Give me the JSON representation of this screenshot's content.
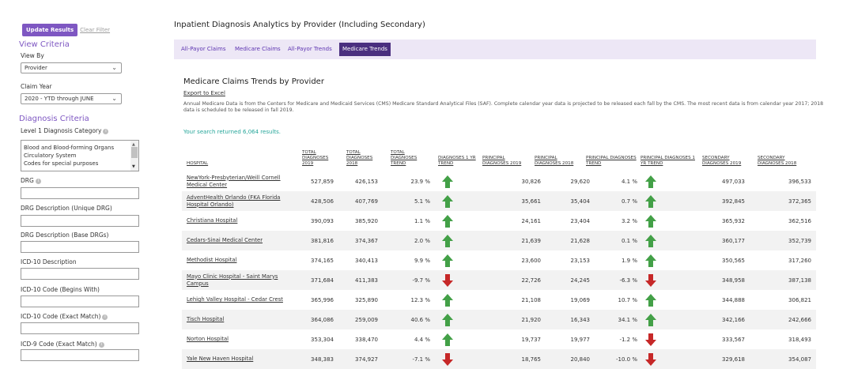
{
  "sidebar": {
    "update_button": "Update Results",
    "clear_filter": "Clear Filter",
    "view_criteria_title": "View Criteria",
    "view_by_label": "View By",
    "view_by_value": "Provider",
    "claim_year_label": "Claim Year",
    "claim_year_value": "2020 - YTD through JUNE",
    "diagnosis_criteria_title": "Diagnosis Criteria",
    "level1_label": "Level 1 Diagnosis Category",
    "level1_options": [
      "Blood and Blood-forming Organs",
      "Circulatory System",
      "Codes for special purposes"
    ],
    "drg_label": "DRG",
    "drg_desc_unique_label": "DRG Description (Unique DRG)",
    "drg_desc_base_label": "DRG Description (Base DRGs)",
    "icd10_desc_label": "ICD-10 Description",
    "icd10_begins_label": "ICD-10 Code (Begins With)",
    "icd10_exact_label": "ICD-10 Code (Exact Match)",
    "icd9_exact_label": "ICD-9 Code (Exact Match)"
  },
  "main": {
    "page_title": "Inpatient Diagnosis Analytics by Provider (Including Secondary)",
    "tabs": [
      {
        "label": "All-Payor Claims",
        "active": false
      },
      {
        "label": "Medicare Claims",
        "active": false
      },
      {
        "label": "All-Payor Trends",
        "active": false
      },
      {
        "label": "Medicare Trends",
        "active": true
      }
    ],
    "section_title": "Medicare Claims Trends by Provider",
    "export_label": "Export to Excel",
    "description": "Annual Medicare Data is from the Centers for Medicare and Medicaid Services (CMS) Medicare Standard Analytical Files (SAF). Complete calendar year data is projected to be released each fall by the CMS. The most recent data is from calendar year 2017; 2018 data is scheduled to be released in fall 2019.",
    "results_text": "Your search returned 6,064 results."
  },
  "table": {
    "headers": [
      "HOSPITAL",
      "TOTAL DIAGNOSES 2019",
      "TOTAL DIAGNOSES 2018",
      "TOTAL DIAGNOSES TREND",
      "DIAGNOSES 1 YR TREND",
      "PRINCIPAL DIAGNOSES 2019",
      "PRINCIPAL DIAGNOSES 2018",
      "PRINCIPAL DIAGNOSES TREND",
      "PRINCIPAL DIAGNOSES 1 YR TREND",
      "SECONDARY DIAGNOSES 2019",
      "SECONDARY DIAGNOSES 2018"
    ],
    "colors": {
      "up": "#43a047",
      "down": "#c62828"
    },
    "rows": [
      {
        "hospital": "NewYork-Presbyterian/Weill Cornell Medical Center",
        "t2019": "527,859",
        "t2018": "426,153",
        "ttrend": "23.9 %",
        "tdir": "up",
        "p2019": "30,826",
        "p2018": "29,620",
        "ptrend": "4.1 %",
        "pdir": "up",
        "s2019": "497,033",
        "s2018": "396,533"
      },
      {
        "hospital": "AdventHealth Orlando (FKA Florida Hospital Orlando)",
        "t2019": "428,506",
        "t2018": "407,769",
        "ttrend": "5.1 %",
        "tdir": "up",
        "p2019": "35,661",
        "p2018": "35,404",
        "ptrend": "0.7 %",
        "pdir": "up",
        "s2019": "392,845",
        "s2018": "372,365"
      },
      {
        "hospital": "Christiana Hospital",
        "t2019": "390,093",
        "t2018": "385,920",
        "ttrend": "1.1 %",
        "tdir": "up",
        "p2019": "24,161",
        "p2018": "23,404",
        "ptrend": "3.2 %",
        "pdir": "up",
        "s2019": "365,932",
        "s2018": "362,516"
      },
      {
        "hospital": "Cedars-Sinai Medical Center",
        "t2019": "381,816",
        "t2018": "374,367",
        "ttrend": "2.0 %",
        "tdir": "up",
        "p2019": "21,639",
        "p2018": "21,628",
        "ptrend": "0.1 %",
        "pdir": "up",
        "s2019": "360,177",
        "s2018": "352,739"
      },
      {
        "hospital": "Methodist Hospital",
        "t2019": "374,165",
        "t2018": "340,413",
        "ttrend": "9.9 %",
        "tdir": "up",
        "p2019": "23,600",
        "p2018": "23,153",
        "ptrend": "1.9 %",
        "pdir": "up",
        "s2019": "350,565",
        "s2018": "317,260"
      },
      {
        "hospital": "Mayo Clinic Hospital - Saint Marys Campus",
        "t2019": "371,684",
        "t2018": "411,383",
        "ttrend": "-9.7 %",
        "tdir": "down",
        "p2019": "22,726",
        "p2018": "24,245",
        "ptrend": "-6.3 %",
        "pdir": "down",
        "s2019": "348,958",
        "s2018": "387,138"
      },
      {
        "hospital": "Lehigh Valley Hospital - Cedar Crest",
        "t2019": "365,996",
        "t2018": "325,890",
        "ttrend": "12.3 %",
        "tdir": "up",
        "p2019": "21,108",
        "p2018": "19,069",
        "ptrend": "10.7 %",
        "pdir": "up",
        "s2019": "344,888",
        "s2018": "306,821"
      },
      {
        "hospital": "Tisch Hospital",
        "t2019": "364,086",
        "t2018": "259,009",
        "ttrend": "40.6 %",
        "tdir": "up",
        "p2019": "21,920",
        "p2018": "16,343",
        "ptrend": "34.1 %",
        "pdir": "up",
        "s2019": "342,166",
        "s2018": "242,666"
      },
      {
        "hospital": "Norton Hospital",
        "t2019": "353,304",
        "t2018": "338,470",
        "ttrend": "4.4 %",
        "tdir": "up",
        "p2019": "19,737",
        "p2018": "19,977",
        "ptrend": "-1.2 %",
        "pdir": "down",
        "s2019": "333,567",
        "s2018": "318,493"
      },
      {
        "hospital": "Yale New Haven Hospital",
        "t2019": "348,383",
        "t2018": "374,927",
        "ttrend": "-7.1 %",
        "tdir": "down",
        "p2019": "18,765",
        "p2018": "20,840",
        "ptrend": "-10.0 %",
        "pdir": "down",
        "s2019": "329,618",
        "s2018": "354,087"
      }
    ]
  }
}
